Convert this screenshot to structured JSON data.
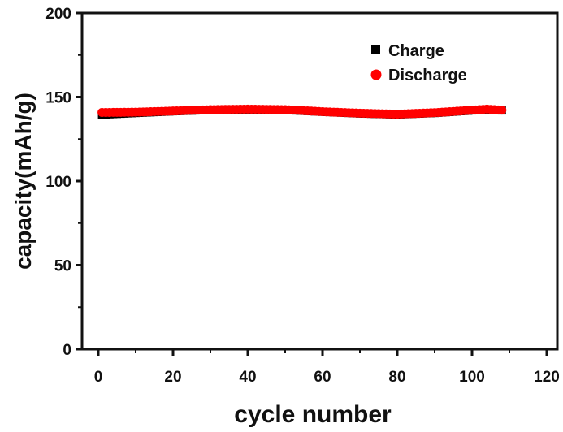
{
  "chart_data": {
    "type": "scatter",
    "title": "",
    "xlabel": "cycle number",
    "ylabel": "capacity(mAh/g)",
    "xlim": [
      -10,
      120
    ],
    "ylim": [
      0,
      200
    ],
    "xticks": [
      0,
      20,
      40,
      60,
      80,
      100,
      120
    ],
    "yticks": [
      0,
      50,
      100,
      150,
      200
    ],
    "grid": false,
    "legend_position": "top-right",
    "series": [
      {
        "name": "Charge",
        "marker": "square",
        "color": "#000000",
        "x_range": [
          1,
          108
        ],
        "anchors": [
          [
            1,
            139.5
          ],
          [
            10,
            140.5
          ],
          [
            20,
            141.5
          ],
          [
            30,
            142.3
          ],
          [
            40,
            142.6
          ],
          [
            50,
            142.3
          ],
          [
            60,
            141.2
          ],
          [
            70,
            140.2
          ],
          [
            80,
            139.6
          ],
          [
            90,
            140.5
          ],
          [
            100,
            142
          ],
          [
            104,
            142.6
          ],
          [
            108,
            142
          ]
        ]
      },
      {
        "name": "Discharge",
        "marker": "circle",
        "color": "#ff0000",
        "x_range": [
          1,
          108
        ],
        "anchors": [
          [
            1,
            140.8
          ],
          [
            10,
            141
          ],
          [
            20,
            141.7
          ],
          [
            30,
            142.5
          ],
          [
            40,
            142.8
          ],
          [
            50,
            142.5
          ],
          [
            60,
            141.3
          ],
          [
            70,
            140.4
          ],
          [
            80,
            139.8
          ],
          [
            90,
            140.7
          ],
          [
            100,
            142.2
          ],
          [
            104,
            142.8
          ],
          [
            108,
            142.2
          ]
        ]
      }
    ]
  }
}
